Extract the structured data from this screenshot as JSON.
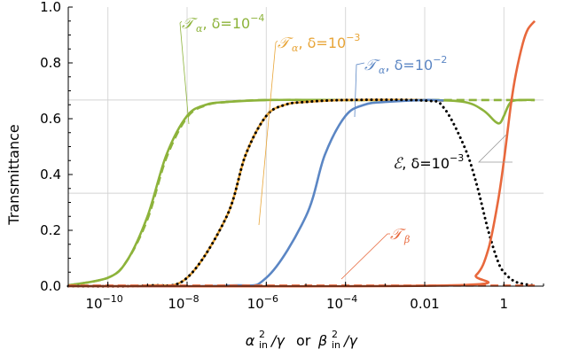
{
  "chart_data": {
    "type": "line",
    "title": "",
    "xlabel": "αin²/γ or βin²/γ",
    "ylabel": "Transmittance",
    "x_scale": "log",
    "xlim": [
      1e-11,
      10
    ],
    "ylim": [
      0,
      1
    ],
    "x_ticks": [
      {
        "value": 1e-10,
        "label": "10",
        "exp": "−10"
      },
      {
        "value": 1e-08,
        "label": "10",
        "exp": "−8"
      },
      {
        "value": 1e-06,
        "label": "10",
        "exp": "−6"
      },
      {
        "value": 0.0001,
        "label": "10",
        "exp": "−4"
      },
      {
        "value": 0.01,
        "label": "0.01",
        "exp": ""
      },
      {
        "value": 1,
        "label": "1",
        "exp": ""
      }
    ],
    "y_ticks": [
      {
        "value": 0.0,
        "label": "0.0"
      },
      {
        "value": 0.2,
        "label": "0.2"
      },
      {
        "value": 0.4,
        "label": "0.4"
      },
      {
        "value": 0.6,
        "label": "0.6"
      },
      {
        "value": 0.8,
        "label": "0.8"
      },
      {
        "value": 1.0,
        "label": "1.0"
      }
    ],
    "reference_lines_y": [
      0.667,
      0.333
    ],
    "grid": true,
    "series": [
      {
        "color": "#8db33b",
        "style": "solid",
        "x": [
          1e-11,
          1e-10,
          3e-10,
          1e-09,
          3e-09,
          1e-08,
          3e-08,
          1e-07,
          1e-06,
          0.0001,
          0.01,
          0.1,
          0.3,
          0.6,
          0.8,
          1,
          1.5,
          3,
          6
        ],
        "y": [
          0.003,
          0.03,
          0.09,
          0.25,
          0.47,
          0.61,
          0.65,
          0.66,
          0.667,
          0.667,
          0.667,
          0.66,
          0.63,
          0.59,
          0.585,
          0.61,
          0.66,
          0.667,
          0.667
        ]
      },
      {
        "color": "#8db33b",
        "style": "dashed",
        "x": [
          1e-11,
          1e-10,
          3e-10,
          1e-09,
          3e-09,
          1e-08,
          3e-08,
          1e-07,
          1e-06,
          0.0001,
          0.01,
          1,
          6
        ],
        "y": [
          0.003,
          0.03,
          0.09,
          0.24,
          0.46,
          0.605,
          0.648,
          0.66,
          0.667,
          0.667,
          0.667,
          0.667,
          0.667
        ]
      },
      {
        "color": "#e8a538",
        "style": "solid",
        "x": [
          1e-11,
          1e-09,
          1e-08,
          1e-07,
          3e-07,
          1e-06,
          3e-06,
          1e-05,
          0.0001,
          0.01,
          0.03
        ],
        "y": [
          0,
          0.002,
          0.03,
          0.25,
          0.47,
          0.61,
          0.65,
          0.66,
          0.667,
          0.667,
          0.664
        ]
      },
      {
        "color": "#5b86c4",
        "style": "solid",
        "x": [
          1e-11,
          1e-07,
          1e-06,
          1e-05,
          3e-05,
          0.0001,
          0.0003,
          0.001,
          0.01,
          0.03
        ],
        "y": [
          0,
          0.002,
          0.03,
          0.25,
          0.47,
          0.61,
          0.65,
          0.66,
          0.667,
          0.665
        ]
      },
      {
        "color": "#000000",
        "style": "dotted",
        "x": [
          1e-11,
          1e-09,
          1e-08,
          1e-07,
          3e-07,
          1e-06,
          3e-06,
          1e-05,
          0.0001,
          0.01,
          0.03,
          0.1,
          0.2,
          0.4,
          0.7,
          1,
          2,
          6
        ],
        "y": [
          0,
          0.002,
          0.03,
          0.25,
          0.47,
          0.61,
          0.65,
          0.66,
          0.667,
          0.665,
          0.64,
          0.5,
          0.37,
          0.2,
          0.09,
          0.05,
          0.015,
          0.002
        ]
      },
      {
        "color": "#e8683c",
        "style": "solid",
        "x": [
          1e-11,
          0.05,
          0.2,
          0.4,
          0.7,
          1,
          1.5,
          2,
          3,
          4,
          6
        ],
        "y": [
          0,
          0.003,
          0.04,
          0.13,
          0.3,
          0.45,
          0.65,
          0.76,
          0.87,
          0.92,
          0.95
        ]
      },
      {
        "color": "#e8683c",
        "style": "dashed",
        "x": [
          1e-11,
          6
        ],
        "y": [
          0.002,
          0.002
        ]
      }
    ],
    "annotations": [
      {
        "main": "𝒯",
        "sub": "α",
        "text": ", δ=10",
        "sup": "−4",
        "color": "#8db33b"
      },
      {
        "main": "𝒯",
        "sub": "α",
        "text": ", δ=10",
        "sup": "−3",
        "color": "#e8a538"
      },
      {
        "main": "𝒯",
        "sub": "α",
        "text": ", δ=10",
        "sup": "−2",
        "color": "#5b86c4"
      },
      {
        "main": "ℰ",
        "sub": "",
        "text": ", δ=10",
        "sup": "−3",
        "color": "#000000"
      },
      {
        "main": "𝒯",
        "sub": "β",
        "text": "",
        "sup": "",
        "color": "#e8683c"
      }
    ]
  }
}
